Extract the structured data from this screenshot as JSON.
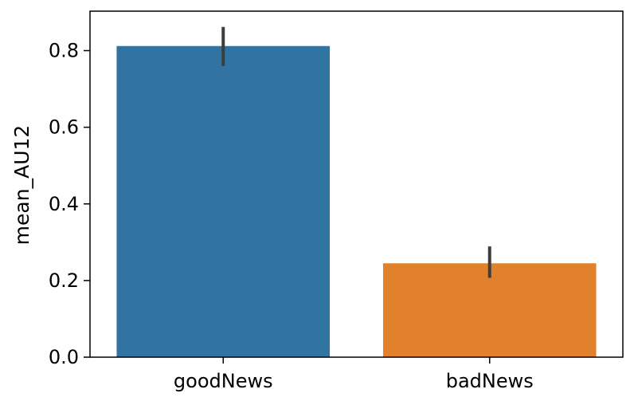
{
  "chart_data": {
    "type": "bar",
    "title": "",
    "xlabel": "",
    "ylabel": "mean_AU12",
    "categories": [
      "goodNews",
      "badNews"
    ],
    "values": [
      0.812,
      0.245
    ],
    "error_bars": [
      {
        "low": 0.76,
        "high": 0.862
      },
      {
        "low": 0.207,
        "high": 0.289
      }
    ],
    "colors": [
      "#3274a1",
      "#e1812c"
    ],
    "error_color": "#3d3d3d",
    "ylim": [
      0,
      0.903
    ],
    "yticks": [
      0.0,
      0.2,
      0.4,
      0.6,
      0.8
    ],
    "ytick_labels": [
      "0.0",
      "0.2",
      "0.4",
      "0.6",
      "0.8"
    ],
    "grid": false,
    "legend": "none"
  }
}
